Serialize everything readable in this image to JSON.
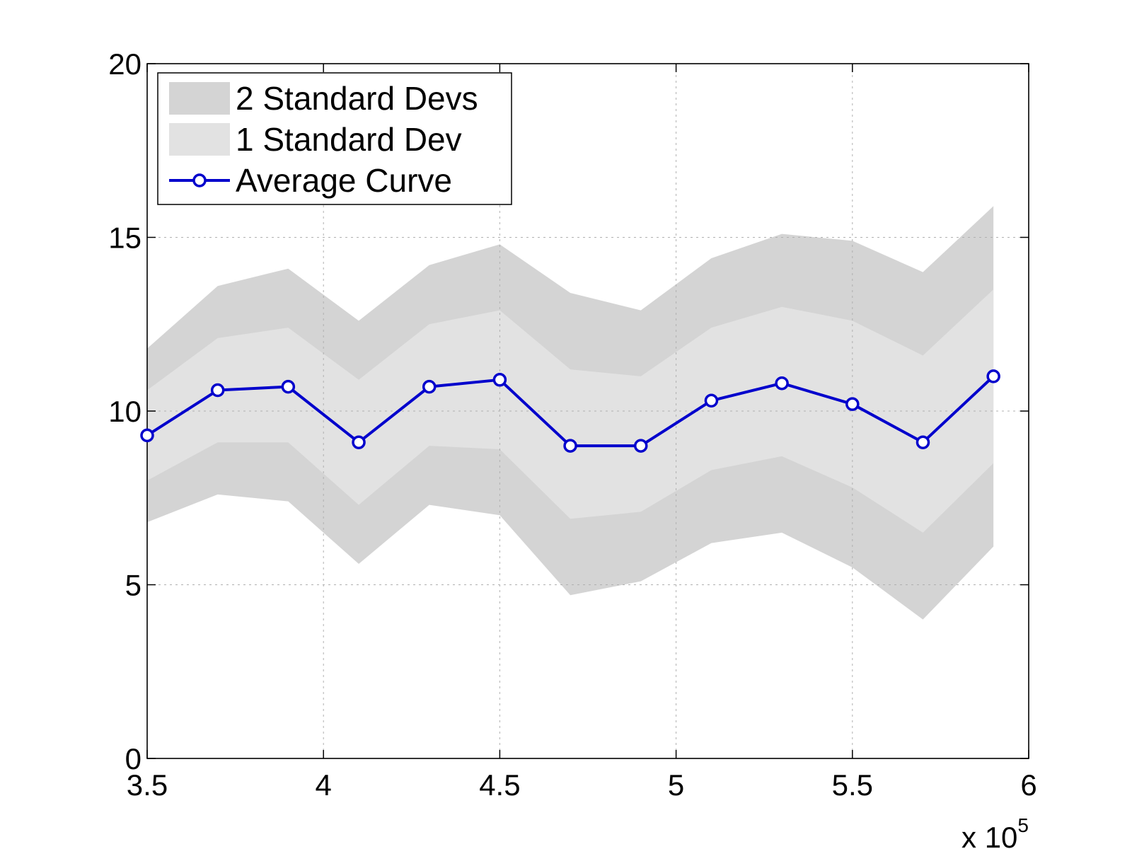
{
  "chart_data": {
    "type": "area",
    "title": "",
    "xlabel": "",
    "ylabel": "",
    "xlim": [
      3.5,
      6
    ],
    "ylim": [
      0,
      20
    ],
    "x_multiplier_label": {
      "base": "x 10",
      "exponent": "5"
    },
    "xticks": [
      {
        "value": 3.5,
        "label": "3.5"
      },
      {
        "value": 4,
        "label": "4"
      },
      {
        "value": 4.5,
        "label": "4.5"
      },
      {
        "value": 5,
        "label": "5"
      },
      {
        "value": 5.5,
        "label": "5.5"
      },
      {
        "value": 6,
        "label": "6"
      }
    ],
    "yticks": [
      {
        "value": 0,
        "label": "0"
      },
      {
        "value": 5,
        "label": "5"
      },
      {
        "value": 10,
        "label": "10"
      },
      {
        "value": 15,
        "label": "15"
      },
      {
        "value": 20,
        "label": "20"
      }
    ],
    "grid": true,
    "legend_position": "top-left",
    "x": [
      3.5,
      3.7,
      3.9,
      4.1,
      4.3,
      4.5,
      4.7,
      4.9,
      5.1,
      5.3,
      5.5,
      5.7,
      5.9
    ],
    "series": [
      {
        "name": "2 Standard Devs",
        "kind": "band",
        "color": "#d4d4d4",
        "upper": [
          11.8,
          13.6,
          14.1,
          12.6,
          14.2,
          14.8,
          13.4,
          12.9,
          14.4,
          15.1,
          14.9,
          14.0,
          15.9
        ],
        "lower": [
          6.8,
          7.6,
          7.4,
          5.6,
          7.3,
          7.0,
          4.7,
          5.1,
          6.2,
          6.5,
          5.5,
          4.0,
          6.1
        ]
      },
      {
        "name": "1 Standard Dev",
        "kind": "band",
        "color": "#e2e2e2",
        "upper": [
          10.6,
          12.1,
          12.4,
          10.9,
          12.5,
          12.9,
          11.2,
          11.0,
          12.4,
          13.0,
          12.6,
          11.6,
          13.5
        ],
        "lower": [
          8.0,
          9.1,
          9.1,
          7.3,
          9.0,
          8.9,
          6.9,
          7.1,
          8.3,
          8.7,
          7.8,
          6.5,
          8.5
        ]
      },
      {
        "name": "Average Curve",
        "kind": "line",
        "color": "#0000cc",
        "marker": "circle",
        "values": [
          9.3,
          10.6,
          10.7,
          9.1,
          10.7,
          10.9,
          9.0,
          9.0,
          10.3,
          10.8,
          10.2,
          9.1,
          11.0
        ]
      }
    ]
  }
}
